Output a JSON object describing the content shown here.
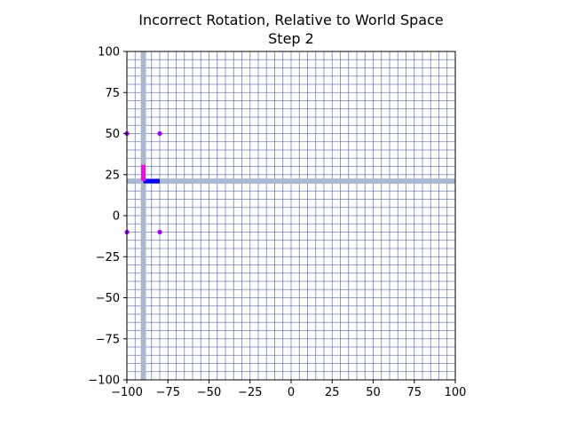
{
  "chart_data": {
    "type": "scatter",
    "title": "Incorrect Rotation, Relative to World Space",
    "subtitle": "Step 2",
    "xlabel": "",
    "ylabel": "",
    "xlim": [
      -100,
      100
    ],
    "ylim": [
      -100,
      100
    ],
    "x_ticks": [
      -100,
      -75,
      -50,
      -25,
      0,
      25,
      50,
      75,
      100
    ],
    "y_ticks": [
      -100,
      -75,
      -50,
      -25,
      0,
      25,
      50,
      75,
      100
    ],
    "x_tick_labels": [
      "−100",
      "−75",
      "−50",
      "−25",
      "0",
      "25",
      "50",
      "75",
      "100"
    ],
    "y_tick_labels": [
      "−100",
      "−75",
      "−50",
      "−25",
      "0",
      "25",
      "50",
      "75",
      "100"
    ],
    "grid": true,
    "grid_step": 5,
    "grid_color": "#4a5aa0",
    "axis_lines": {
      "x": -90,
      "y": 21,
      "color": "#aab8d4"
    },
    "points": [
      {
        "x": -100,
        "y": 50
      },
      {
        "x": -80,
        "y": 50
      },
      {
        "x": -100,
        "y": -10
      },
      {
        "x": -80,
        "y": -10
      }
    ],
    "point_color": "#a000ff",
    "local_axes": {
      "origin": [
        -90,
        21
      ],
      "x_axis": {
        "to": [
          -80,
          21
        ],
        "color": "#0000ff"
      },
      "y_axis": {
        "to": [
          -90,
          31
        ],
        "color": "#ff00ff"
      }
    }
  }
}
